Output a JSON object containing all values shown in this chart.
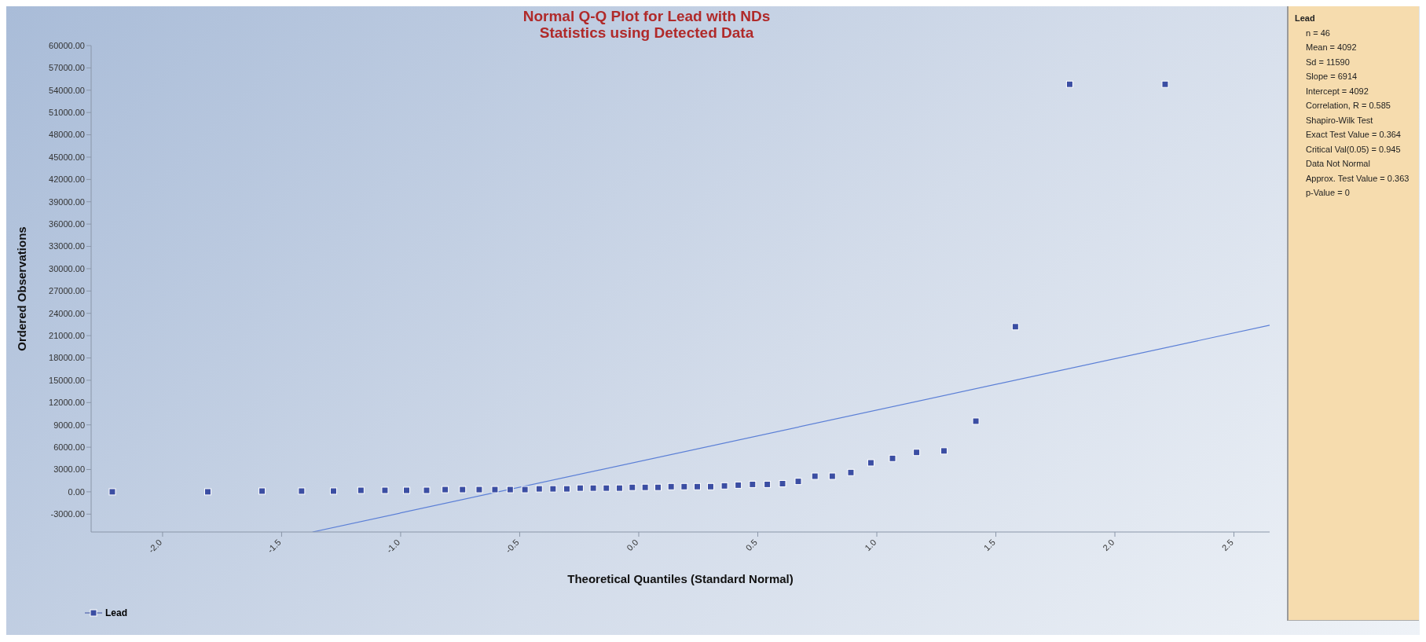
{
  "chart_data": {
    "type": "scatter",
    "title": "Normal Q-Q Plot for Lead with NDs",
    "subtitle": "Statistics using Detected Data",
    "xlabel": "Theoretical Quantiles (Standard Normal)",
    "ylabel": "Ordered Observations",
    "series": [
      {
        "name": "Lead",
        "color": "#3b4ea3",
        "x": [
          -2.211,
          -1.81,
          -1.582,
          -1.416,
          -1.282,
          -1.167,
          -1.066,
          -0.975,
          -0.891,
          -0.813,
          -0.74,
          -0.67,
          -0.604,
          -0.54,
          -0.478,
          -0.418,
          -0.36,
          -0.302,
          -0.246,
          -0.191,
          -0.136,
          -0.081,
          -0.027,
          0.027,
          0.081,
          0.136,
          0.191,
          0.246,
          0.302,
          0.36,
          0.418,
          0.478,
          0.54,
          0.604,
          0.67,
          0.74,
          0.813,
          0.891,
          0.975,
          1.066,
          1.167,
          1.282,
          1.416,
          1.582,
          1.81,
          2.211
        ],
        "values": [
          0,
          0,
          100,
          100,
          100,
          200,
          200,
          200,
          200,
          300,
          300,
          300,
          300,
          300,
          300,
          400,
          400,
          400,
          500,
          500,
          500,
          500,
          600,
          600,
          600,
          700,
          700,
          700,
          700,
          800,
          900,
          1000,
          1000,
          1100,
          1400,
          2100,
          2100,
          2600,
          3900,
          4500,
          5300,
          5500,
          9500,
          22200,
          54800,
          54800
        ]
      },
      {
        "type": "line",
        "marker": "none",
        "color": "#5b7fd6",
        "x": [
          -1.37,
          2.65
        ],
        "values": [
          -5400,
          22400
        ]
      }
    ],
    "marker": "square",
    "legend": "bottom left",
    "grid": false,
    "xlim": [
      -2.3,
      2.65
    ],
    "xticks": [
      {
        "value": -2,
        "label": "-2.0"
      },
      {
        "value": -1.5,
        "label": "-1.5"
      },
      {
        "value": -1,
        "label": "-1.0"
      },
      {
        "value": -0.5,
        "label": "-0.5"
      },
      {
        "value": 0,
        "label": "0.0"
      },
      {
        "value": 0.5,
        "label": "0.5"
      },
      {
        "value": 1,
        "label": "1.0"
      },
      {
        "value": 1.5,
        "label": "1.5"
      },
      {
        "value": 2,
        "label": "2.0"
      },
      {
        "value": 2.5,
        "label": "2.5"
      }
    ],
    "ylim": [
      -5400,
      60000
    ],
    "yticks": [
      {
        "value": -3000,
        "label": "-3000.00"
      },
      {
        "value": 0,
        "label": "0.00"
      },
      {
        "value": 3000,
        "label": "3000.00"
      },
      {
        "value": 6000,
        "label": "6000.00"
      },
      {
        "value": 9000,
        "label": "9000.00"
      },
      {
        "value": 12000,
        "label": "12000.00"
      },
      {
        "value": 15000,
        "label": "15000.00"
      },
      {
        "value": 18000,
        "label": "18000.00"
      },
      {
        "value": 21000,
        "label": "21000.00"
      },
      {
        "value": 24000,
        "label": "24000.00"
      },
      {
        "value": 27000,
        "label": "27000.00"
      },
      {
        "value": 30000,
        "label": "30000.00"
      },
      {
        "value": 33000,
        "label": "33000.00"
      },
      {
        "value": 36000,
        "label": "36000.00"
      },
      {
        "value": 39000,
        "label": "39000.00"
      },
      {
        "value": 42000,
        "label": "42000.00"
      },
      {
        "value": 45000,
        "label": "45000.00"
      },
      {
        "value": 48000,
        "label": "48000.00"
      },
      {
        "value": 51000,
        "label": "51000.00"
      },
      {
        "value": 54000,
        "label": "54000.00"
      },
      {
        "value": 57000,
        "label": "57000.00"
      },
      {
        "value": 60000,
        "label": "60000.00"
      }
    ],
    "annotations": [
      "Lead",
      "n = 46",
      "Mean = 4092",
      "Sd = 11590",
      "Slope = 6914",
      "Intercept = 4092",
      "Correlation, R = 0.585",
      "Shapiro-Wilk Test",
      "Exact Test Value = 0.364",
      "Critical Val(0.05) = 0.945",
      "Data Not Normal",
      "Approx. Test Value = 0.363",
      "p-Value = 0"
    ]
  }
}
